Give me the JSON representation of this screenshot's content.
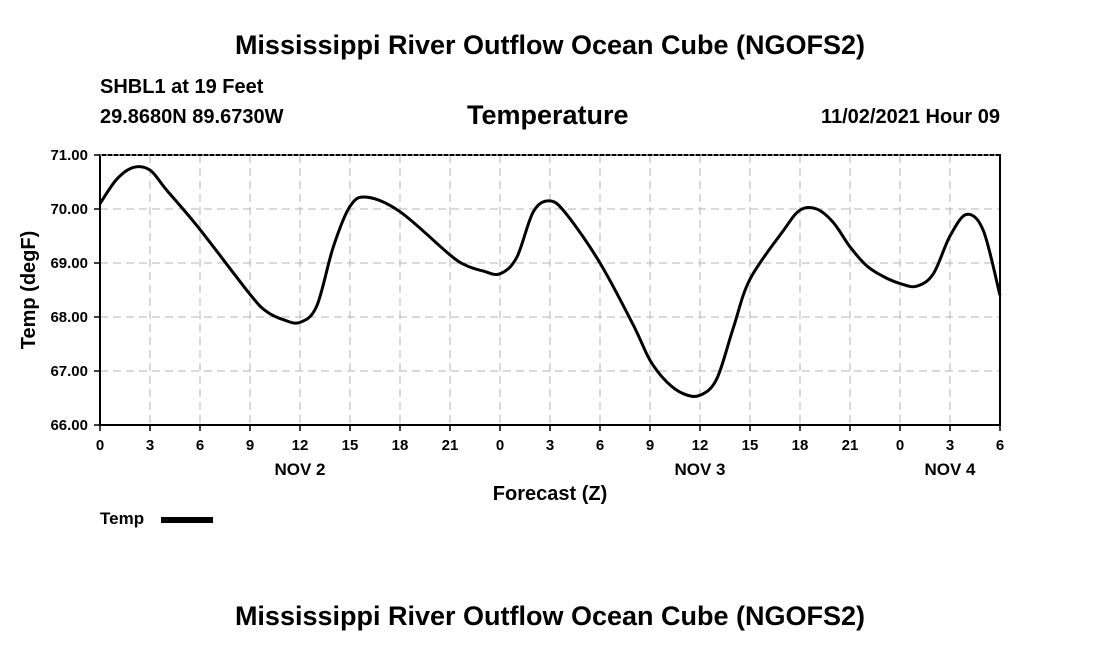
{
  "header": {
    "main_title": "Mississippi River Outflow Ocean Cube (NGOFS2)",
    "station": "SHBL1 at 19 Feet",
    "coords": "29.8680N  89.6730W",
    "datetime": "11/02/2021 Hour 09",
    "footer_title": "Mississippi River Outflow Ocean Cube (NGOFS2)"
  },
  "legend": {
    "label": "Temp",
    "color": "#000000"
  },
  "chart_data": {
    "type": "line",
    "title": "Temperature",
    "xlabel": "Forecast (Z)",
    "ylabel": "Temp (degF)",
    "xlim": [
      0,
      54
    ],
    "ylim": [
      66.0,
      71.0
    ],
    "grid": true,
    "x_tick_labels": [
      "0",
      "3",
      "6",
      "9",
      "12",
      "15",
      "18",
      "21",
      "0",
      "3",
      "6",
      "9",
      "12",
      "15",
      "18",
      "21",
      "0",
      "3",
      "6"
    ],
    "y_tick_labels": [
      "66.00",
      "67.00",
      "68.00",
      "69.00",
      "70.00",
      "71.00"
    ],
    "day_labels": [
      {
        "label": "NOV 2",
        "hour": 12
      },
      {
        "label": "NOV 3",
        "hour": 36
      },
      {
        "label": "NOV 4",
        "hour": 51
      }
    ],
    "series": [
      {
        "name": "Temp",
        "x": [
          0,
          1,
          2,
          3,
          4,
          6,
          9,
          10,
          11,
          12,
          13,
          14,
          15,
          16,
          18,
          21,
          22,
          23,
          24,
          25,
          26,
          27,
          28,
          30,
          32,
          33,
          34,
          35,
          36,
          37,
          38,
          39,
          41,
          42,
          43,
          44,
          45,
          46,
          47,
          48,
          49,
          50,
          51,
          52,
          53,
          54
        ],
        "values": [
          70.1,
          70.55,
          70.77,
          70.72,
          70.35,
          69.62,
          68.42,
          68.1,
          67.95,
          67.9,
          68.2,
          69.3,
          70.05,
          70.22,
          69.95,
          69.15,
          68.95,
          68.85,
          68.8,
          69.1,
          69.95,
          70.15,
          69.9,
          69.0,
          67.85,
          67.2,
          66.8,
          66.58,
          66.55,
          66.85,
          67.8,
          68.7,
          69.6,
          69.98,
          70.0,
          69.75,
          69.3,
          68.95,
          68.75,
          68.62,
          68.57,
          68.8,
          69.5,
          69.9,
          69.6,
          68.4
        ]
      }
    ]
  }
}
